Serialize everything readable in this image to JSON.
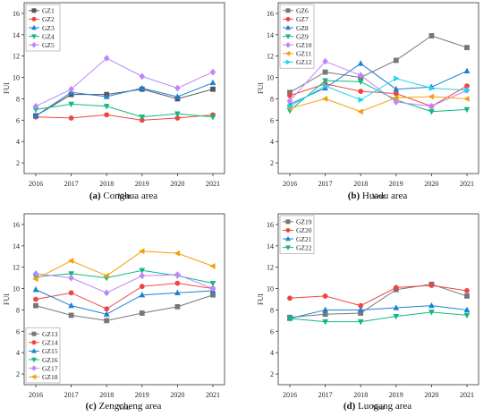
{
  "chart_data": [
    {
      "type": "line",
      "caption_tag": "(a)",
      "caption_text": "Conghua area",
      "xlabel": "Year",
      "ylabel": "FUI",
      "x": [
        2016,
        2017,
        2018,
        2019,
        2020,
        2021
      ],
      "ylim": [
        1,
        17
      ],
      "yticks": [
        2,
        4,
        6,
        8,
        10,
        12,
        14,
        16
      ],
      "legend_position": "top-left",
      "series": [
        {
          "name": "GZ1",
          "color": "#555555",
          "marker": "square",
          "values": [
            6.4,
            8.4,
            8.4,
            8.9,
            8.0,
            8.9
          ]
        },
        {
          "name": "GZ2",
          "color": "#ef4444",
          "marker": "circle",
          "values": [
            6.3,
            6.2,
            6.5,
            6.0,
            6.2,
            6.5
          ]
        },
        {
          "name": "GZ3",
          "color": "#1e7fd8",
          "marker": "triangle",
          "values": [
            6.4,
            8.6,
            8.2,
            9.0,
            8.2,
            9.5
          ]
        },
        {
          "name": "GZ4",
          "color": "#10b981",
          "marker": "triangle-down",
          "values": [
            7.0,
            7.5,
            7.3,
            6.3,
            6.6,
            6.3
          ]
        },
        {
          "name": "GZ5",
          "color": "#c084fc",
          "marker": "diamond",
          "values": [
            7.3,
            8.9,
            11.8,
            10.1,
            9.0,
            10.5
          ]
        }
      ]
    },
    {
      "type": "line",
      "caption_tag": "(b)",
      "caption_text": "Huadu area",
      "xlabel": "Year",
      "ylabel": "FUI",
      "x": [
        2016,
        2017,
        2018,
        2019,
        2020,
        2021
      ],
      "ylim": [
        1,
        17
      ],
      "yticks": [
        2,
        4,
        6,
        8,
        10,
        12,
        14,
        16
      ],
      "legend_position": "top-left",
      "series": [
        {
          "name": "GZ6",
          "color": "#777777",
          "marker": "square",
          "values": [
            8.6,
            10.5,
            10.0,
            11.6,
            13.9,
            12.8
          ]
        },
        {
          "name": "GZ7",
          "color": "#ef4444",
          "marker": "circle",
          "values": [
            8.3,
            9.4,
            8.7,
            8.5,
            7.3,
            9.2
          ]
        },
        {
          "name": "GZ8",
          "color": "#1e7fd8",
          "marker": "triangle",
          "values": [
            7.5,
            9.0,
            11.3,
            8.9,
            9.1,
            10.6
          ]
        },
        {
          "name": "GZ9",
          "color": "#10b981",
          "marker": "triangle-down",
          "values": [
            6.9,
            9.7,
            9.6,
            7.9,
            6.8,
            7.0
          ]
        },
        {
          "name": "GZ10",
          "color": "#c084fc",
          "marker": "diamond",
          "values": [
            7.8,
            11.5,
            10.2,
            7.7,
            7.3,
            8.8
          ]
        },
        {
          "name": "GZ11",
          "color": "#f59e0b",
          "marker": "triangle-left",
          "values": [
            7.1,
            8.0,
            6.8,
            8.1,
            8.2,
            8.0
          ]
        },
        {
          "name": "GZ12",
          "color": "#22d3ee",
          "marker": "triangle-right",
          "values": [
            7.3,
            9.2,
            7.9,
            9.9,
            9.0,
            8.8
          ]
        }
      ]
    },
    {
      "type": "line",
      "caption_tag": "(c)",
      "caption_text": "Zengcheng area",
      "xlabel": "Year",
      "ylabel": "FUI",
      "x": [
        2016,
        2017,
        2018,
        2019,
        2020,
        2021
      ],
      "ylim": [
        1,
        17
      ],
      "yticks": [
        2,
        4,
        6,
        8,
        10,
        12,
        14,
        16
      ],
      "legend_position": "bottom-left",
      "series": [
        {
          "name": "GZ13",
          "color": "#777777",
          "marker": "square",
          "values": [
            8.4,
            7.5,
            7.0,
            7.7,
            8.3,
            9.4
          ]
        },
        {
          "name": "GZ14",
          "color": "#ef4444",
          "marker": "circle",
          "values": [
            9.0,
            9.6,
            8.1,
            10.2,
            10.5,
            10.0
          ]
        },
        {
          "name": "GZ15",
          "color": "#1e7fd8",
          "marker": "triangle",
          "values": [
            9.9,
            8.4,
            7.6,
            9.4,
            9.6,
            9.8
          ]
        },
        {
          "name": "GZ16",
          "color": "#10b981",
          "marker": "triangle-down",
          "values": [
            11.1,
            11.4,
            11.0,
            11.7,
            11.2,
            10.5
          ]
        },
        {
          "name": "GZ17",
          "color": "#c084fc",
          "marker": "diamond",
          "values": [
            11.4,
            11.0,
            9.6,
            11.2,
            11.3,
            10.0
          ]
        },
        {
          "name": "GZ18",
          "color": "#f59e0b",
          "marker": "triangle-left",
          "values": [
            10.9,
            12.6,
            11.2,
            13.5,
            13.3,
            12.1
          ]
        }
      ]
    },
    {
      "type": "line",
      "caption_tag": "(d)",
      "caption_text": "Luogang area",
      "xlabel": "Year",
      "ylabel": "FUI",
      "x": [
        2016,
        2017,
        2018,
        2019,
        2020,
        2021
      ],
      "ylim": [
        1,
        17
      ],
      "yticks": [
        2,
        4,
        6,
        8,
        10,
        12,
        14,
        16
      ],
      "legend_position": "top-left",
      "series": [
        {
          "name": "GZ19",
          "color": "#777777",
          "marker": "square",
          "values": [
            7.3,
            7.6,
            7.7,
            9.9,
            10.4,
            9.3
          ]
        },
        {
          "name": "GZ20",
          "color": "#ef4444",
          "marker": "circle",
          "values": [
            9.1,
            9.3,
            8.4,
            10.1,
            10.3,
            9.8
          ]
        },
        {
          "name": "GZ21",
          "color": "#1e7fd8",
          "marker": "triangle",
          "values": [
            7.2,
            8.0,
            8.0,
            8.2,
            8.4,
            8.0
          ]
        },
        {
          "name": "GZ22",
          "color": "#10b981",
          "marker": "triangle-down",
          "values": [
            7.2,
            6.9,
            6.9,
            7.4,
            7.8,
            7.5
          ]
        }
      ]
    }
  ]
}
